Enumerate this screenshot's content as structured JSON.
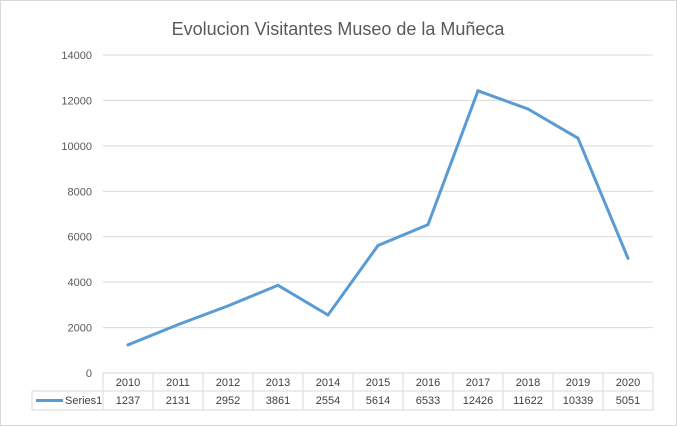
{
  "chart_data": {
    "type": "line",
    "title": "Evolucion Visitantes Museo de la Muñeca",
    "categories": [
      "2010",
      "2011",
      "2012",
      "2013",
      "2014",
      "2015",
      "2016",
      "2017",
      "2018",
      "2019",
      "2020"
    ],
    "series": [
      {
        "name": "Series1",
        "values": [
          1237,
          2131,
          2952,
          3861,
          2554,
          5614,
          6533,
          12426,
          11622,
          10339,
          5051
        ]
      }
    ],
    "ylim": [
      0,
      14000
    ],
    "yticks": [
      0,
      2000,
      4000,
      6000,
      8000,
      10000,
      12000,
      14000
    ],
    "grid": true,
    "legend": "data-table",
    "colors": {
      "line": "#5b9bd5",
      "grid": "#d9d9d9",
      "text": "#595959"
    }
  }
}
